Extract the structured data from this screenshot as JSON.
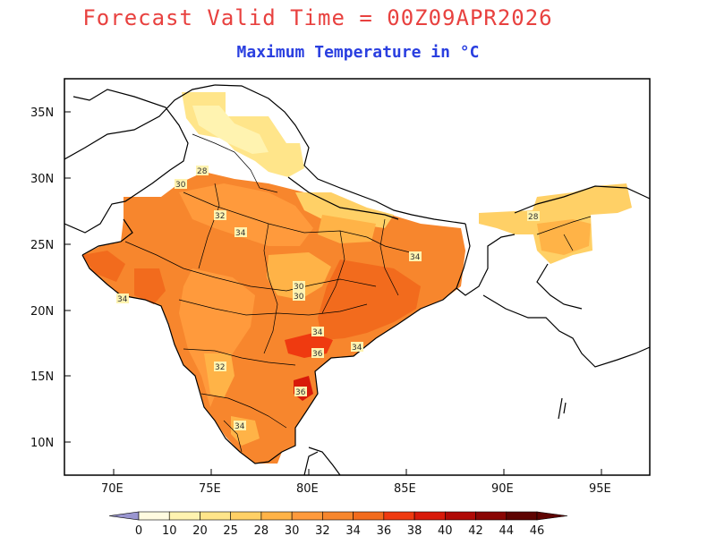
{
  "title": "Forecast Valid Time = 00Z09APR2026",
  "subtitle": "Maximum Temperature in °C",
  "axes": {
    "lon_ticks": [
      "70E",
      "75E",
      "80E",
      "85E",
      "90E",
      "95E"
    ],
    "lat_ticks": [
      "35N",
      "30N",
      "25N",
      "20N",
      "15N",
      "10N"
    ]
  },
  "contour_labels": [
    "28",
    "30",
    "32",
    "34",
    "34",
    "34",
    "30",
    "30",
    "34",
    "32",
    "36",
    "36",
    "34",
    "34",
    "28"
  ],
  "colorbar": {
    "labels": [
      "0",
      "10",
      "20",
      "25",
      "28",
      "30",
      "32",
      "34",
      "36",
      "38",
      "40",
      "42",
      "44",
      "46"
    ],
    "colors": [
      "#9a96d0",
      "#fffbe0",
      "#fff3b0",
      "#ffe58a",
      "#ffd066",
      "#ffb347",
      "#ff9a3c",
      "#f7862d",
      "#f26b1d",
      "#ef3a10",
      "#d81a0a",
      "#b00a06",
      "#8a0604",
      "#5e0402"
    ]
  }
}
